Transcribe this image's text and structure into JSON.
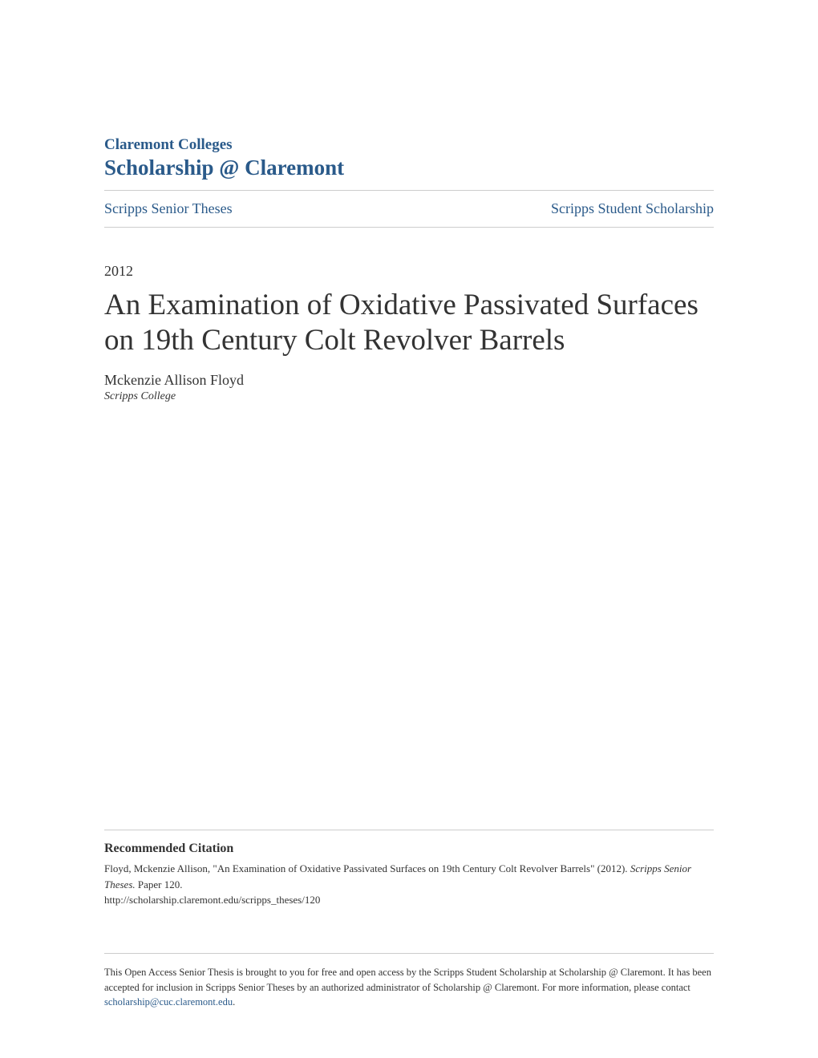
{
  "header": {
    "institution": "Claremont Colleges",
    "repository": "Scholarship @ Claremont"
  },
  "nav": {
    "left": "Scripps Senior Theses",
    "right": "Scripps Student Scholarship"
  },
  "document": {
    "year": "2012",
    "title": "An Examination of Oxidative Passivated Surfaces on 19th Century Colt Revolver Barrels",
    "author": "Mckenzie Allison Floyd",
    "affiliation": "Scripps College"
  },
  "citation": {
    "heading": "Recommended Citation",
    "author_part": "Floyd, Mckenzie Allison, \"An Examination of Oxidative Passivated Surfaces on 19th Century Colt Revolver Barrels\" (2012). ",
    "series_italic": "Scripps Senior Theses.",
    "paper_number": " Paper 120.",
    "url": "http://scholarship.claremont.edu/scripps_theses/120"
  },
  "footer": {
    "text": "This Open Access Senior Thesis is brought to you for free and open access by the Scripps Student Scholarship at Scholarship @ Claremont. It has been accepted for inclusion in Scripps Senior Theses by an authorized administrator of Scholarship @ Claremont. For more information, please contact ",
    "link": "scholarship@cuc.claremont.edu",
    "period": "."
  },
  "colors": {
    "link_color": "#2a5a8a",
    "text_color": "#333333",
    "border_color": "#cccccc",
    "background": "#ffffff"
  }
}
